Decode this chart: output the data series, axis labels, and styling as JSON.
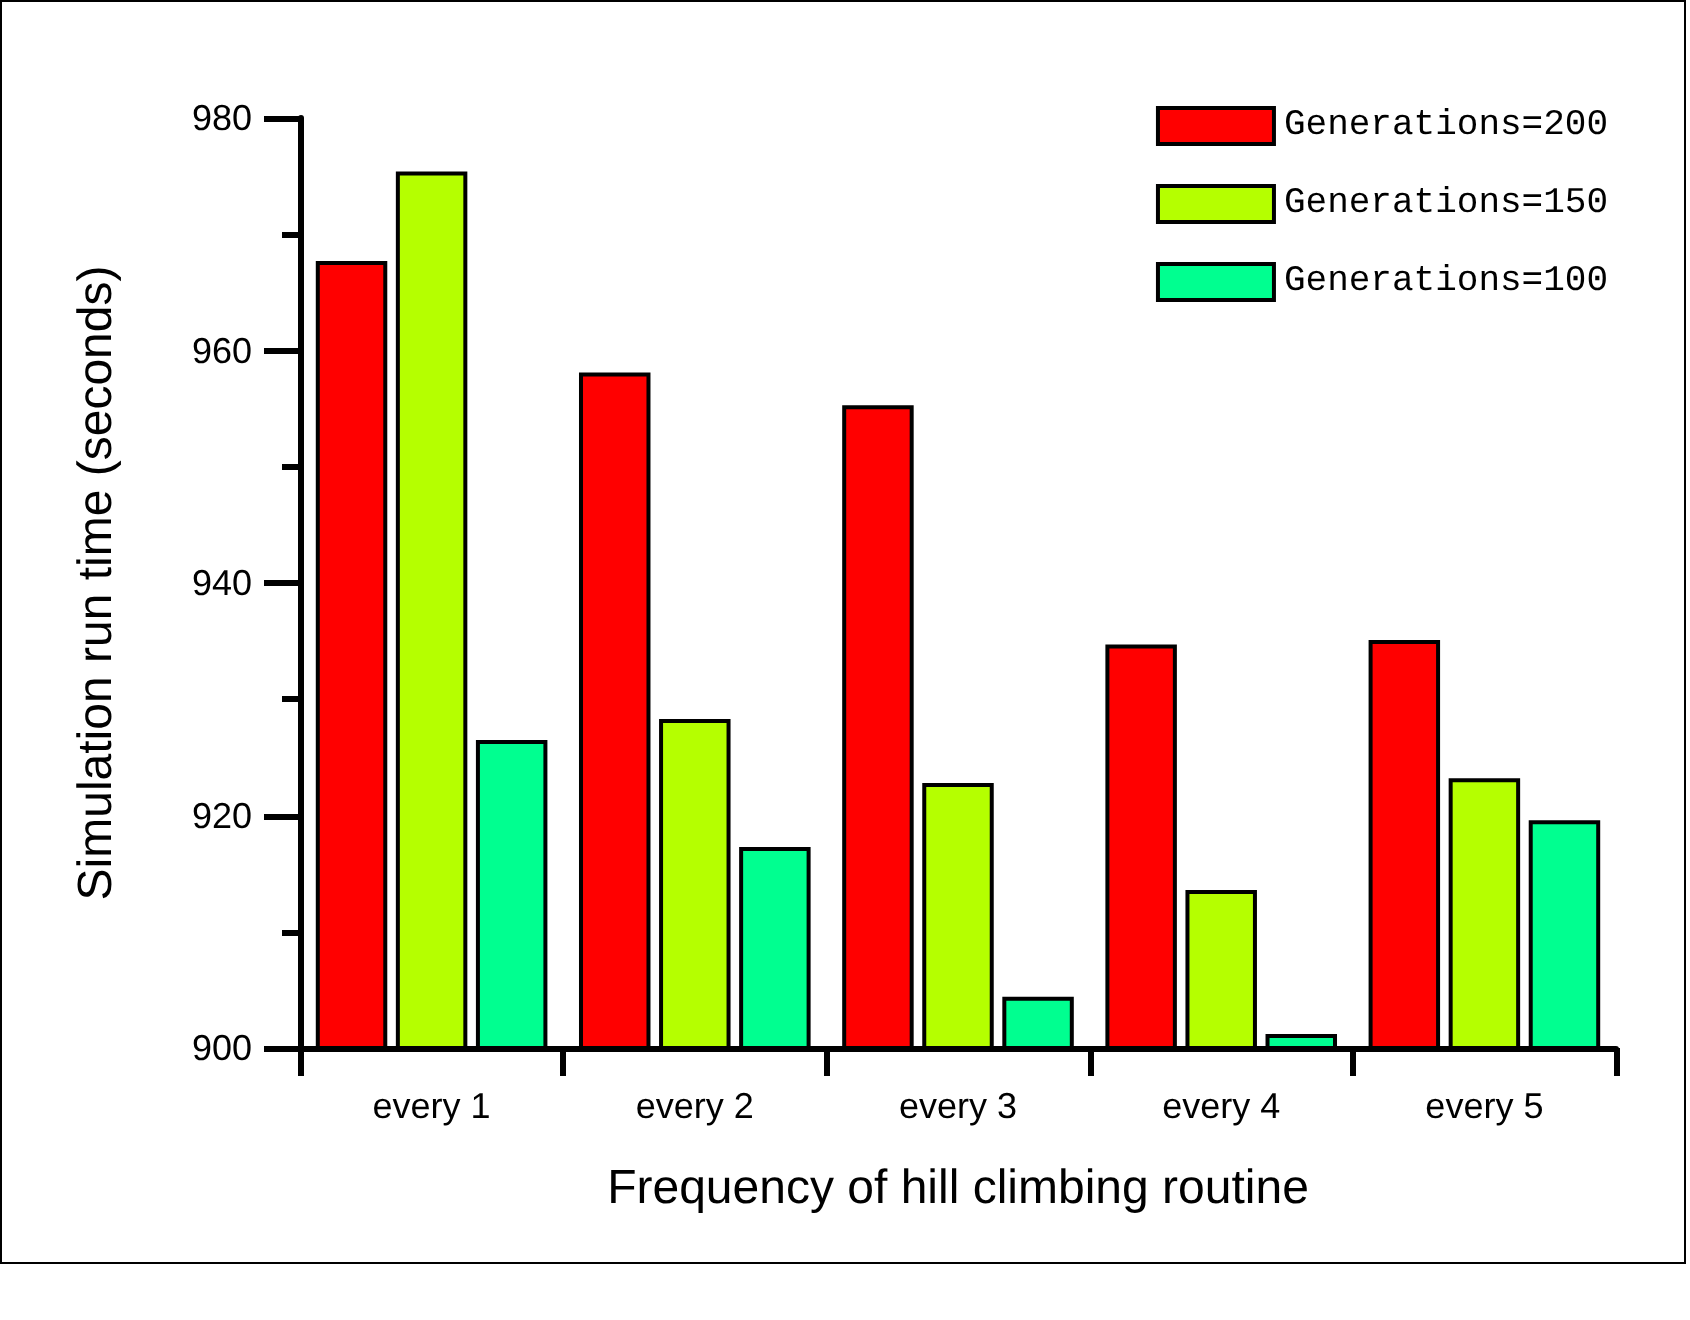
{
  "chart_data": {
    "type": "bar",
    "xlabel": "Frequency of hill climbing routine",
    "ylabel": "Simulation run time (seconds)",
    "categories": [
      "every 1",
      "every 2",
      "every 3",
      "every 4",
      "every 5"
    ],
    "series": [
      {
        "name": "Generations=200",
        "color": "#ff0000",
        "values": [
          967.7,
          958.1,
          955.3,
          934.7,
          935.1
        ]
      },
      {
        "name": "Generations=150",
        "color": "#b5ff00",
        "values": [
          975.4,
          928.3,
          922.8,
          913.6,
          923.2
        ]
      },
      {
        "name": "Generations=100",
        "color": "#00ff90",
        "values": [
          926.5,
          917.3,
          904.4,
          901.2,
          919.6
        ]
      }
    ],
    "ylim": [
      900,
      980
    ],
    "yticks": [
      900,
      920,
      940,
      960,
      980
    ],
    "grid": false,
    "legend": "top right"
  }
}
